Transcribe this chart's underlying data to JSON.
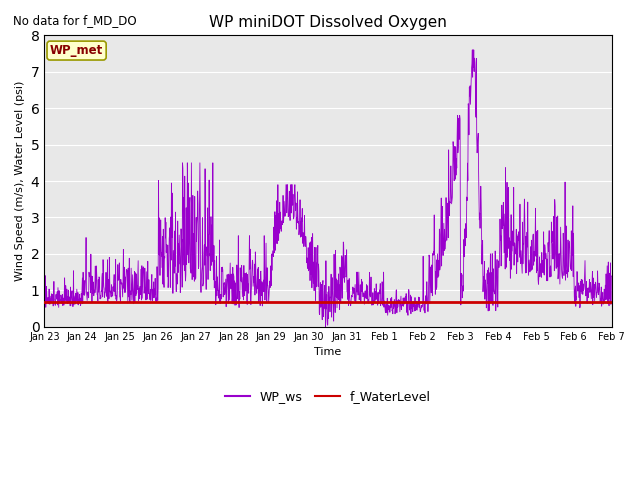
{
  "title": "WP miniDOT Dissolved Oxygen",
  "top_left_text": "No data for f_MD_DO",
  "ylabel": "Wind Speed (m/s), Water Level (psi)",
  "xlabel": "Time",
  "ylim": [
    0.0,
    8.0
  ],
  "yticks": [
    0.0,
    1.0,
    2.0,
    3.0,
    4.0,
    5.0,
    6.0,
    7.0,
    8.0
  ],
  "bg_color": "#e8e8e8",
  "fig_bg_color": "#ffffff",
  "wp_met_box_color": "#ffffcc",
  "wp_met_text_color": "#880000",
  "wp_ws_color": "#9900cc",
  "f_water_level_color": "#cc0000",
  "f_water_level_value": 0.67,
  "x_tick_labels": [
    "Jan 23",
    "Jan 24",
    "Jan 25",
    "Jan 26",
    "Jan 27",
    "Jan 28",
    "Jan 29",
    "Jan 30",
    "Jan 31",
    "Feb 1",
    "Feb 2",
    "Feb 3",
    "Feb 4",
    "Feb 5",
    "Feb 6",
    "Feb 7"
  ],
  "legend_labels": [
    "WP_ws",
    "f_WaterLevel"
  ]
}
